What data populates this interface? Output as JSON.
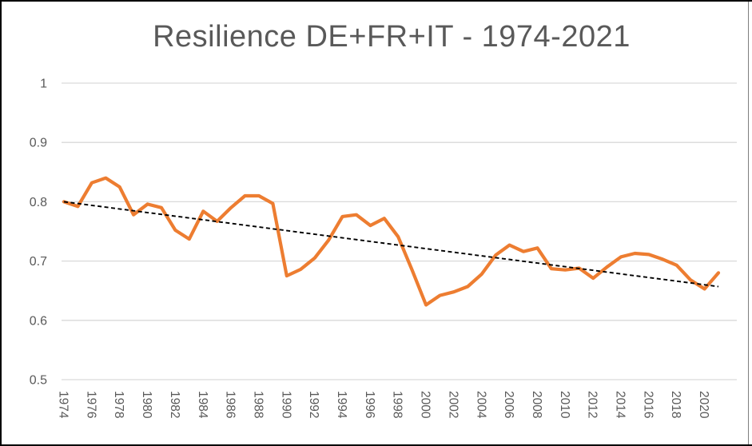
{
  "chart_data": {
    "type": "line",
    "title": "Resilience DE+FR+IT - 1974-2021",
    "xlabel": "",
    "ylabel": "",
    "ylim": [
      0.5,
      1.0
    ],
    "grid": "horizontal",
    "legend": "none",
    "x": [
      1974,
      1975,
      1976,
      1977,
      1978,
      1979,
      1980,
      1981,
      1982,
      1983,
      1984,
      1985,
      1986,
      1987,
      1988,
      1989,
      1990,
      1991,
      1992,
      1993,
      1994,
      1995,
      1996,
      1997,
      1998,
      1999,
      2000,
      2001,
      2002,
      2003,
      2004,
      2005,
      2006,
      2007,
      2008,
      2009,
      2010,
      2011,
      2012,
      2013,
      2014,
      2015,
      2016,
      2017,
      2018,
      2019,
      2020,
      2021
    ],
    "series": [
      {
        "name": "Resilience DE+FR+IT",
        "color": "#ED7D31",
        "values": [
          0.8,
          0.792,
          0.832,
          0.84,
          0.825,
          0.778,
          0.796,
          0.79,
          0.752,
          0.737,
          0.784,
          0.767,
          0.79,
          0.81,
          0.81,
          0.797,
          0.675,
          0.686,
          0.705,
          0.735,
          0.775,
          0.778,
          0.76,
          0.772,
          0.741,
          0.685,
          0.626,
          0.642,
          0.648,
          0.657,
          0.678,
          0.71,
          0.727,
          0.716,
          0.722,
          0.687,
          0.685,
          0.688,
          0.671,
          0.69,
          0.707,
          0.713,
          0.711,
          0.703,
          0.693,
          0.668,
          0.653,
          0.68
        ]
      }
    ],
    "trendline": {
      "name": "Linear trend",
      "style": "dashed",
      "color": "#000000",
      "x": [
        1974,
        2021
      ],
      "values": [
        0.8,
        0.657
      ]
    },
    "yticks": [
      1,
      0.9,
      0.8,
      0.7,
      0.6,
      0.5
    ],
    "ytick_labels": [
      "1",
      "0.9",
      "0.8",
      "0.7",
      "0.6",
      "0.5"
    ],
    "xtick_labels": [
      "1974",
      "1976",
      "1978",
      "1980",
      "1982",
      "1984",
      "1986",
      "1988",
      "1990",
      "1992",
      "1994",
      "1996",
      "1998",
      "2000",
      "2002",
      "2004",
      "2006",
      "2008",
      "2010",
      "2012",
      "2014",
      "2016",
      "2018",
      "2020"
    ],
    "colors": {
      "series": "#ED7D31",
      "trend": "#000000",
      "gridline": "#D9D9D9",
      "axis_text": "#595959",
      "title_text": "#595959",
      "background": "#FFFFFF"
    }
  }
}
